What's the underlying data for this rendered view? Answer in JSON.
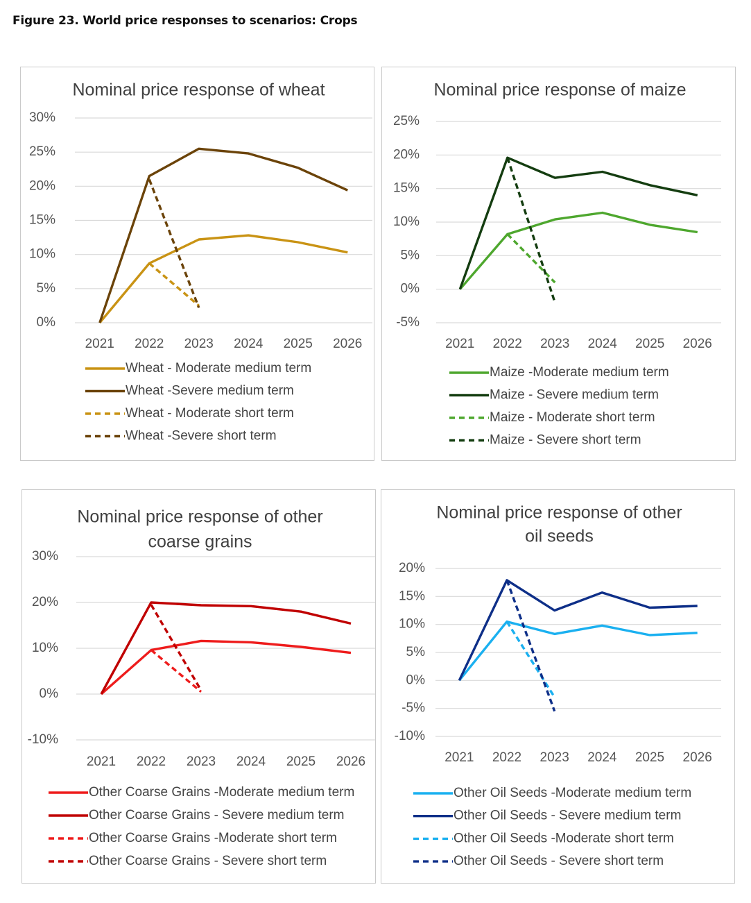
{
  "figure_title": "Figure 23. World price responses to scenarios: Crops",
  "chart_data": [
    {
      "type": "line",
      "title": "Nominal price response of wheat",
      "title_lines": [
        "Nominal price response of wheat"
      ],
      "x": [
        "2021",
        "2022",
        "2023",
        "2024",
        "2025",
        "2026"
      ],
      "ylim": [
        0,
        30
      ],
      "yticks": [
        0,
        5,
        10,
        15,
        20,
        25,
        30
      ],
      "ytick_labels": [
        "0%",
        "5%",
        "10%",
        "15%",
        "20%",
        "25%",
        "30%"
      ],
      "grid": true,
      "legend": "bottom",
      "series": [
        {
          "name": "Wheat - Moderate medium term",
          "color": "#c99314",
          "dash": false,
          "values": [
            0,
            8.7,
            12.2,
            12.8,
            11.8,
            10.3
          ]
        },
        {
          "name": "Wheat -Severe medium term",
          "color": "#6b4309",
          "dash": false,
          "values": [
            0,
            21.5,
            25.5,
            24.8,
            22.7,
            19.4
          ]
        },
        {
          "name": "Wheat - Moderate short term",
          "color": "#c99314",
          "dash": true,
          "values": [
            null,
            8.7,
            2.5,
            null,
            null,
            null
          ]
        },
        {
          "name": "Wheat -Severe short term",
          "color": "#6b4309",
          "dash": true,
          "values": [
            null,
            21.0,
            2.2,
            null,
            null,
            null
          ]
        }
      ]
    },
    {
      "type": "line",
      "title": "Nominal price response of maize",
      "title_lines": [
        "Nominal price response of maize"
      ],
      "x": [
        "2021",
        "2022",
        "2023",
        "2024",
        "2025",
        "2026"
      ],
      "ylim": [
        -5,
        25
      ],
      "yticks": [
        -5,
        0,
        5,
        10,
        15,
        20,
        25
      ],
      "ytick_labels": [
        "-5%",
        "0%",
        "5%",
        "10%",
        "15%",
        "20%",
        "25%"
      ],
      "grid": true,
      "legend": "bottom",
      "series": [
        {
          "name": "Maize -Moderate medium term",
          "color": "#4ea72e",
          "dash": false,
          "values": [
            0,
            8.2,
            10.4,
            11.4,
            9.6,
            8.5
          ]
        },
        {
          "name": "Maize - Severe medium term",
          "color": "#143d10",
          "dash": false,
          "values": [
            0,
            19.6,
            16.6,
            17.5,
            15.5,
            14.0
          ]
        },
        {
          "name": "Maize - Moderate short term",
          "color": "#4ea72e",
          "dash": true,
          "values": [
            null,
            8.2,
            1.0,
            null,
            null,
            null
          ]
        },
        {
          "name": "Maize - Severe short term",
          "color": "#143d10",
          "dash": true,
          "values": [
            null,
            19.6,
            -2.0,
            null,
            null,
            null
          ]
        }
      ]
    },
    {
      "type": "line",
      "title": "Nominal price response of other coarse grains",
      "title_lines": [
        "Nominal price response of other",
        "coarse grains"
      ],
      "x": [
        "2021",
        "2022",
        "2023",
        "2024",
        "2025",
        "2026"
      ],
      "ylim": [
        -10,
        30
      ],
      "yticks": [
        -10,
        0,
        10,
        20,
        30
      ],
      "ytick_labels": [
        "-10%",
        "0%",
        "10%",
        "20%",
        "30%"
      ],
      "grid": true,
      "legend": "bottom",
      "series": [
        {
          "name": "Other Coarse Grains -Moderate medium term",
          "color": "#ee1c1c",
          "dash": false,
          "values": [
            0,
            9.6,
            11.6,
            11.3,
            10.3,
            9.0
          ]
        },
        {
          "name": "Other Coarse Grains - Severe medium term",
          "color": "#c00000",
          "dash": false,
          "values": [
            0,
            20.0,
            19.4,
            19.2,
            18.0,
            15.4
          ]
        },
        {
          "name": "Other Coarse Grains -Moderate short term",
          "color": "#ee1c1c",
          "dash": true,
          "values": [
            null,
            9.6,
            0.5,
            null,
            null,
            null
          ]
        },
        {
          "name": "Other Coarse Grains - Severe short term",
          "color": "#c00000",
          "dash": true,
          "values": [
            null,
            19.5,
            0.8,
            null,
            null,
            null
          ]
        }
      ]
    },
    {
      "type": "line",
      "title": "Nominal price response of other oil seeds",
      "title_lines": [
        "Nominal price response of other",
        "oil seeds"
      ],
      "x": [
        "2021",
        "2022",
        "2023",
        "2024",
        "2025",
        "2026"
      ],
      "ylim": [
        -10,
        20
      ],
      "yticks": [
        -10,
        -5,
        0,
        5,
        10,
        15,
        20
      ],
      "ytick_labels": [
        "-10%",
        "-5%",
        "0%",
        "5%",
        "10%",
        "15%",
        "20%"
      ],
      "grid": true,
      "legend": "bottom",
      "series": [
        {
          "name": "Other Oil Seeds -Moderate medium term",
          "color": "#1ab0f0",
          "dash": false,
          "values": [
            0,
            10.5,
            8.3,
            9.8,
            8.1,
            8.5
          ]
        },
        {
          "name": "Other Oil Seeds - Severe medium term",
          "color": "#0e2f88",
          "dash": false,
          "values": [
            0,
            17.9,
            12.5,
            15.7,
            13.0,
            13.3
          ]
        },
        {
          "name": "Other Oil Seeds -Moderate short term",
          "color": "#1ab0f0",
          "dash": true,
          "values": [
            null,
            10.5,
            -3.0,
            null,
            null,
            null
          ]
        },
        {
          "name": "Other Oil Seeds - Severe short term",
          "color": "#0e2f88",
          "dash": true,
          "values": [
            null,
            17.9,
            -5.5,
            null,
            null,
            null
          ]
        }
      ]
    }
  ]
}
